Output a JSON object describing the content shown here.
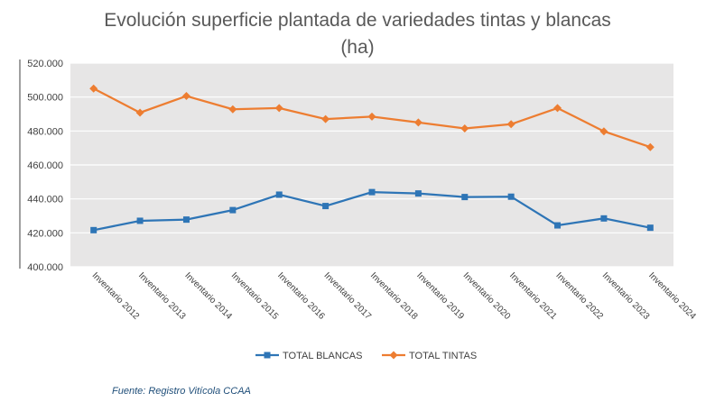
{
  "title": {
    "line1": "Evolución superficie plantada de variedades tintas y blancas",
    "line2": "(ha)"
  },
  "source": "Fuente: Registro Vitícola CCAA",
  "chart_data": {
    "type": "line",
    "title": "Evolución superficie plantada de variedades tintas y blancas (ha)",
    "xlabel": "",
    "ylabel": "",
    "categories": [
      "Inventario 2012",
      "Inventario 2013",
      "Inventario 2014",
      "Inventario 2015",
      "Inventario 2016",
      "Inventario 2017",
      "Inventario 2018",
      "Inventario 2019",
      "Inventario 2020",
      "Inventario 2021",
      "Inventario 2022",
      "Inventario 2023",
      "Inventario 2024"
    ],
    "ylim": [
      400000,
      520000
    ],
    "yticks": [
      400000,
      420000,
      440000,
      460000,
      480000,
      500000,
      520000
    ],
    "ytick_labels": [
      "400.000",
      "420.000",
      "440.000",
      "460.000",
      "480.000",
      "500.000",
      "520.000"
    ],
    "grid": true,
    "legend_position": "bottom",
    "series": [
      {
        "name": "TOTAL BLANCAS",
        "color": "#2e75b6",
        "marker": "square",
        "values": [
          421600,
          427100,
          427800,
          433400,
          442500,
          435800,
          444000,
          443200,
          441100,
          441300,
          424400,
          428500,
          423000
        ]
      },
      {
        "name": "TOTAL TINTAS",
        "color": "#ed7d31",
        "marker": "diamond",
        "values": [
          505000,
          490800,
          500600,
          492800,
          493500,
          487000,
          488500,
          485000,
          481500,
          484000,
          493500,
          479800,
          470500
        ]
      }
    ]
  }
}
